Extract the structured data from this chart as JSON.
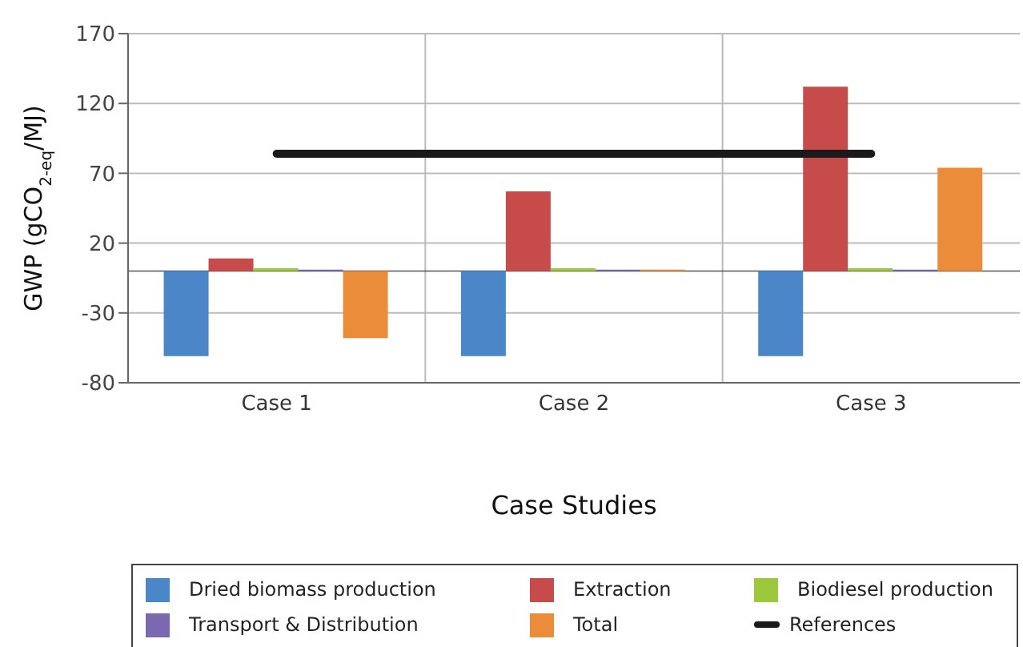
{
  "chart_data": {
    "type": "bar",
    "xlabel": "Case Studies",
    "ylabel": "GWP (gCO$_{2-eq}$/MJ)",
    "categories": [
      "Case 1",
      "Case 2",
      "Case 3"
    ],
    "series": [
      {
        "name": "Dried biomass production",
        "color": "#4a86c8",
        "values": [
          -61,
          -61,
          -61
        ]
      },
      {
        "name": "Extraction",
        "color": "#c84b4b",
        "values": [
          9,
          57,
          132
        ]
      },
      {
        "name": "Biodiesel production",
        "color": "#9bc83c",
        "values": [
          2,
          2,
          2
        ]
      },
      {
        "name": "Transport & Distribution",
        "color": "#7a68b0",
        "values": [
          1,
          1,
          1
        ]
      },
      {
        "name": "Total",
        "color": "#ea8c3a",
        "values": [
          -48,
          1,
          74
        ]
      },
      {
        "name": "References",
        "type": "line",
        "color": "#1a1a1a",
        "values": [
          84,
          84,
          84
        ]
      }
    ],
    "ylim": [
      -80,
      170
    ],
    "yticks": [
      -80,
      -30,
      20,
      70,
      120,
      170
    ],
    "grid": true,
    "legend": "bottom"
  }
}
